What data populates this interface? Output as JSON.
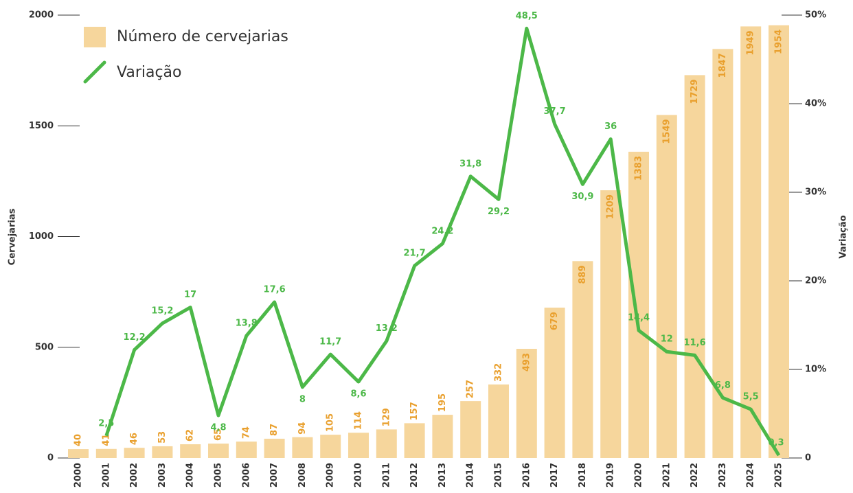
{
  "chart_data": {
    "type": "bar",
    "y_label": "Cervejarias",
    "y2_label": "Variação",
    "categories": [
      "2000",
      "2001",
      "2002",
      "2003",
      "2004",
      "2005",
      "2006",
      "2007",
      "2008",
      "2009",
      "2010",
      "2011",
      "2012",
      "2013",
      "2014",
      "2015",
      "2016",
      "2017",
      "2018",
      "2019",
      "2020",
      "2021",
      "2022",
      "2023",
      "2024",
      "2025"
    ],
    "series": [
      {
        "name": "Número de cervejarias",
        "type": "bar",
        "color": "#f6d69c",
        "label_color": "#e9a02e",
        "values": [
          40,
          41,
          46,
          53,
          62,
          65,
          74,
          87,
          94,
          105,
          114,
          129,
          157,
          195,
          257,
          332,
          493,
          679,
          889,
          1209,
          1383,
          1549,
          1729,
          1847,
          1949,
          1954
        ]
      },
      {
        "name": "Variação",
        "type": "line",
        "axis": "y2",
        "color": "#4cb848",
        "values": [
          null,
          2.5,
          12.2,
          15.2,
          17,
          4.8,
          13.8,
          17.6,
          8,
          11.7,
          8.6,
          13.2,
          21.7,
          24.2,
          31.8,
          29.2,
          48.5,
          37.7,
          30.9,
          36,
          14.4,
          12,
          11.6,
          6.8,
          5.5,
          0.3
        ],
        "value_labels": [
          null,
          "2,5",
          "12,2",
          "15,2",
          "17",
          "4,8",
          "13,8",
          "17,6",
          "8",
          "11,7",
          "8,6",
          "13,2",
          "21,7",
          "24,2",
          "31,8",
          "29,2",
          "48,5",
          "37,7",
          "30,9",
          "36",
          "14,4",
          "12",
          "11,6",
          "6,8",
          "5,5",
          "0,3"
        ]
      }
    ],
    "ylim": [
      0,
      2000
    ],
    "yticks": [
      0,
      500,
      1000,
      1500,
      2000
    ],
    "y2lim": [
      0,
      50
    ],
    "y2ticks": [
      0,
      {
        "value": 10,
        "label": "10%"
      },
      {
        "value": 20,
        "label": "20%"
      },
      {
        "value": 30,
        "label": "30%"
      },
      {
        "value": 40,
        "label": "40%"
      },
      {
        "value": 50,
        "label": "50%"
      }
    ],
    "legend": "top-left"
  }
}
